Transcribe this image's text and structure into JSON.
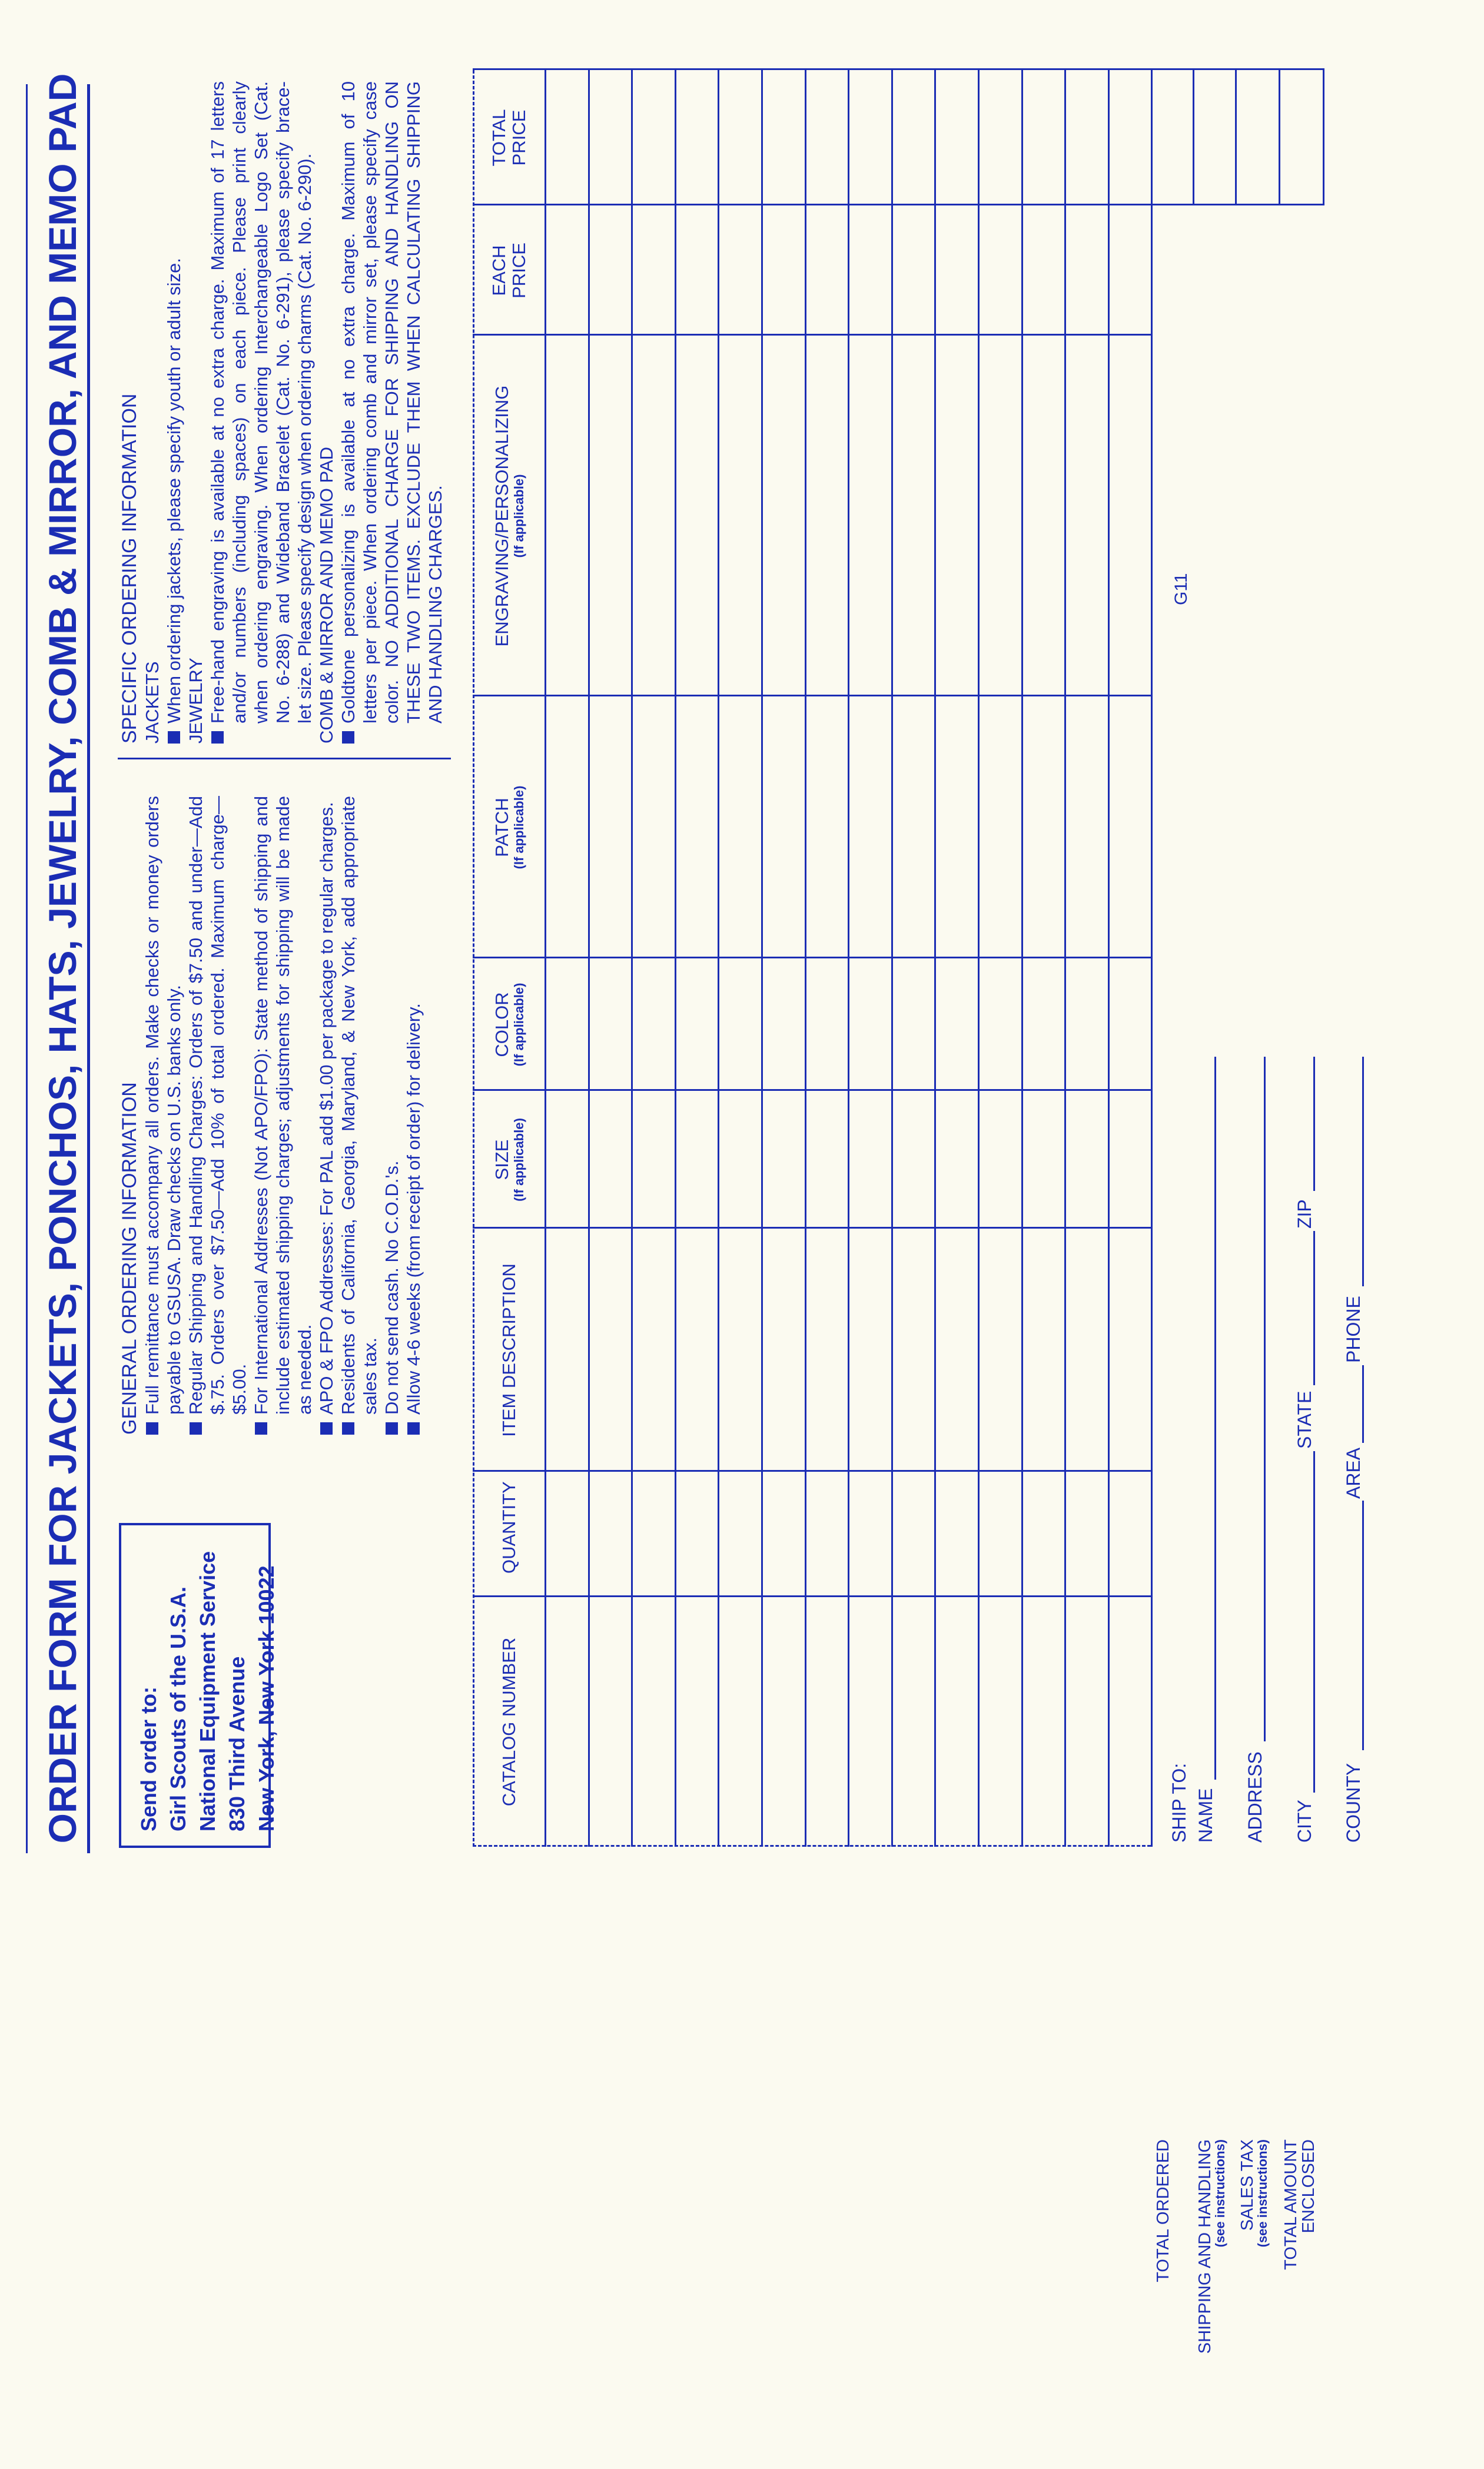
{
  "title": "ORDER FORM FOR JACKETS, PONCHOS, HATS, JEWELRY, COMB & MIRROR, AND MEMO PAD",
  "send_order": {
    "lines": [
      "Send order to:",
      "Girl Scouts of the U.S.A.",
      "National Equipment Service",
      "830 Third Avenue",
      "New York, New York 10022"
    ]
  },
  "general": {
    "heading": "GENERAL ORDERING INFORMATION",
    "bullets": [
      {
        "lines": [
          "Full remittance must accompany all orders. Make checks or money orders",
          "payable to GSUSA. Draw checks on U.S. banks only."
        ]
      },
      {
        "lines": [
          "Regular Shipping and Handling Charges: Orders of $7.50 and under—Add",
          "$.75. Orders over $7.50—Add 10% of total ordered. Maximum charge—",
          "$5.00."
        ]
      },
      {
        "lines": [
          "For International Addresses (Not APO/FPO): State method of shipping and",
          "include estimated shipping charges; adjustments for shipping will be made",
          "as needed."
        ]
      },
      {
        "lines": [
          "APO & FPO Addresses: For PAL add $1.00 per package to regular charges."
        ]
      },
      {
        "lines": [
          "Residents of California, Georgia, Maryland, & New York, add appropriate",
          "sales tax."
        ]
      },
      {
        "lines": [
          "Do not send cash. No C.O.D.'s."
        ]
      },
      {
        "lines": [
          "Allow 4-6 weeks (from receipt of order) for delivery."
        ]
      }
    ]
  },
  "specific": {
    "heading": "SPECIFIC ORDERING INFORMATION",
    "sections": [
      {
        "title": "JACKETS",
        "lines": [
          "When ordering jackets, please specify youth or adult size."
        ]
      },
      {
        "title": "JEWELRY",
        "lines": [
          "Free-hand engraving is available at no extra charge. Maximum of 17 letters",
          "and/or numbers (including spaces) on each piece. Please print clearly",
          "when ordering engraving. When ordering Interchangeable Logo Set (Cat.",
          "No. 6-288) and Wideband Bracelet (Cat. No. 6-291), please specify brace-",
          "let size. Please specify design when ordering charms (Cat. No. 6-290)."
        ]
      },
      {
        "title": "COMB & MIRROR AND MEMO PAD",
        "lines": [
          "Goldtone personalizing is available at no extra charge. Maximum of 10",
          "letters per piece. When ordering comb and mirror set, please specify case",
          "color. NO ADDITIONAL CHARGE FOR SHIPPING AND HANDLING ON",
          "THESE TWO ITEMS. EXCLUDE THEM WHEN CALCULATING SHIPPING",
          "AND HANDLING CHARGES."
        ]
      }
    ]
  },
  "table": {
    "columns": [
      {
        "label": "CATALOG NUMBER",
        "sub": ""
      },
      {
        "label": "QUANTITY",
        "sub": ""
      },
      {
        "label": "ITEM DESCRIPTION",
        "sub": ""
      },
      {
        "label": "SIZE",
        "sub": "(If applicable)"
      },
      {
        "label": "COLOR",
        "sub": "(If applicable)"
      },
      {
        "label": "PATCH",
        "sub": "(If applicable)"
      },
      {
        "label": "ENGRAVING/PERSONALIZING",
        "sub": "(If applicable)"
      },
      {
        "label": "EACH PRICE",
        "sub": ""
      },
      {
        "label": "TOTAL PRICE",
        "sub": ""
      }
    ],
    "blank_rows": 14,
    "totals": [
      {
        "label": "TOTAL ORDERED",
        "sub": ""
      },
      {
        "label": "SHIPPING AND HANDLING",
        "sub": "(see instructions)"
      },
      {
        "label": "SALES TAX",
        "sub": "(see instructions)"
      },
      {
        "label": "TOTAL AMOUNT ENCLOSED",
        "sub": ""
      }
    ]
  },
  "form_code": "G11",
  "ship_to": {
    "heading": "SHIP TO:",
    "name": "NAME",
    "address": "ADDRESS",
    "city": "CITY",
    "state": "STATE",
    "zip": "ZIP",
    "county": "COUNTY",
    "area": "AREA",
    "phone": "PHONE"
  },
  "colors": {
    "ink": "#1b2db4",
    "paper": "#fbfaf0"
  }
}
